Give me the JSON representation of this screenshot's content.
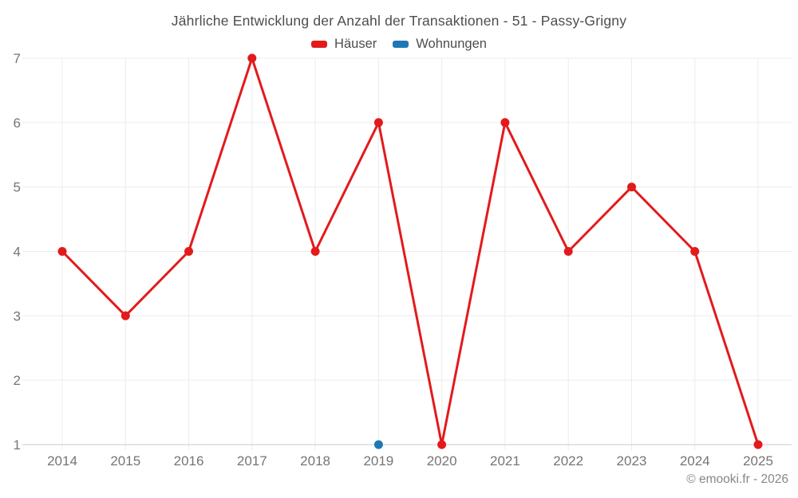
{
  "title": "Jährliche Entwicklung der Anzahl der Transaktionen - 51 - Passy-Grigny",
  "legend": [
    {
      "label": "Häuser",
      "color": "#e31a1c"
    },
    {
      "label": "Wohnungen",
      "color": "#1f78b4"
    }
  ],
  "footer": "© emooki.fr - 2026",
  "colors": {
    "grid": "#ececec",
    "axis": "#d4d4d4",
    "tick_label": "#757575",
    "title_text": "#4d4d4d",
    "footer_text": "#878787",
    "background": "#ffffff"
  },
  "chart_data": {
    "type": "line",
    "title": "Jährliche Entwicklung der Anzahl der Transaktionen - 51 - Passy-Grigny",
    "xlabel": "",
    "ylabel": "",
    "categories": [
      "2014",
      "2015",
      "2016",
      "2017",
      "2018",
      "2019",
      "2020",
      "2021",
      "2022",
      "2023",
      "2024",
      "2025"
    ],
    "series": [
      {
        "name": "Häuser",
        "color": "#e31a1c",
        "values": [
          4,
          3,
          4,
          7,
          4,
          6,
          1,
          6,
          4,
          5,
          4,
          1
        ]
      },
      {
        "name": "Wohnungen",
        "color": "#1f78b4",
        "values": [
          null,
          null,
          null,
          null,
          null,
          1,
          null,
          null,
          null,
          null,
          null,
          null
        ]
      }
    ],
    "ylim": [
      1,
      7
    ],
    "yticks": [
      1,
      2,
      3,
      4,
      5,
      6,
      7
    ],
    "grid": true,
    "legend_position": "top"
  }
}
